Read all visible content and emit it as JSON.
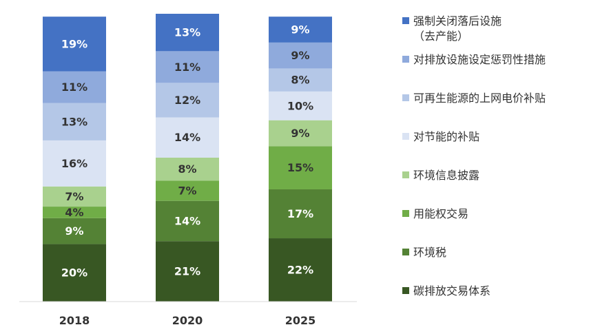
{
  "chart_data": {
    "type": "bar",
    "stacked": true,
    "categories": [
      "2018",
      "2020",
      "2025"
    ],
    "unit": "%",
    "ylim": [
      0,
      100
    ],
    "grid": false,
    "legend_position": "right",
    "series": [
      {
        "name": "碳排放交易体系",
        "values": [
          20,
          21,
          22
        ],
        "color": "#385723",
        "label_color": "#ffffff"
      },
      {
        "name": "环境税",
        "values": [
          9,
          14,
          17
        ],
        "color": "#548235",
        "label_color": "#ffffff"
      },
      {
        "name": "用能权交易",
        "values": [
          4,
          7,
          15
        ],
        "color": "#70ad47",
        "label_color": "#333333"
      },
      {
        "name": "环境信息披露",
        "values": [
          7,
          8,
          9
        ],
        "color": "#a9d18e",
        "label_color": "#333333"
      },
      {
        "name": "对节能的补贴",
        "values": [
          16,
          14,
          10
        ],
        "color": "#dae3f3",
        "label_color": "#333333"
      },
      {
        "name": "可再生能源的上网电价补贴",
        "values": [
          13,
          12,
          8
        ],
        "color": "#b4c7e7",
        "label_color": "#333333"
      },
      {
        "name": "对排放设施设定惩罚性措施",
        "values": [
          11,
          11,
          9
        ],
        "color": "#8faadc",
        "label_color": "#333333"
      },
      {
        "name": "强制关闭落后设施\n（去产能）",
        "values": [
          19,
          13,
          9
        ],
        "color": "#4472c4",
        "label_color": "#ffffff"
      }
    ]
  }
}
